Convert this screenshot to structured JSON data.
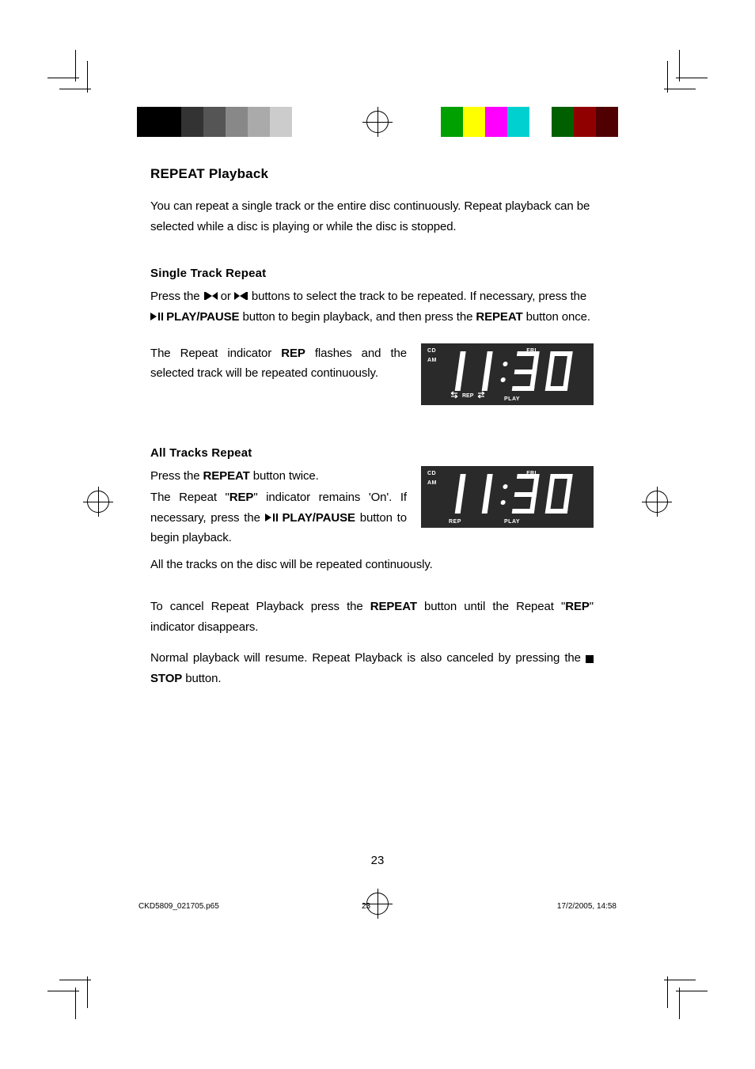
{
  "section_title": "REPEAT Playback",
  "intro": "You can repeat a single track or the entire disc continuously. Repeat playback can be selected while a disc is playing or while the disc is stopped.",
  "single": {
    "heading": "Single Track Repeat",
    "p1_a": "Press the ",
    "p1_b": " or ",
    "p1_c": " buttons to select the track to be repeated. If necessary, press the ",
    "p1_play": " PLAY/PAUSE",
    "p1_d": " button to begin playback, and then press the ",
    "p1_repeat": "REPEAT",
    "p1_e": " button once.",
    "p2_a": "The Repeat indicator ",
    "p2_rep": "REP",
    "p2_b": " flashes and the selected track will be repeated continuously."
  },
  "all": {
    "heading": "All Tracks Repeat",
    "p1_a": "Press the ",
    "p1_repeat": "REPEAT",
    "p1_b": " button twice.",
    "p2_a": "The Repeat \"",
    "p2_rep": "REP",
    "p2_b": "\" indicator remains 'On'. If necessary, press the ",
    "p2_play": " PLAY/PAUSE",
    "p2_c": " button to begin playback.",
    "p3": "All the tracks on the disc will be repeated continuously.",
    "p4_a": "To cancel Repeat Playback press the ",
    "p4_repeat": "REPEAT",
    "p4_b": " button until the Repeat \"",
    "p4_rep": "REP",
    "p4_c": "\" indicator disappears.",
    "p5_a": "Normal playback will resume. Repeat Playback is also canceled by pressing the ",
    "p5_stop": " STOP",
    "p5_b": " button."
  },
  "lcd": {
    "cd": "CD",
    "am": "AM",
    "fri": "FRI",
    "rep": "REP",
    "play": "PLAY",
    "time": "11:30",
    "bg": "#2a2a2a",
    "fg": "#ffffff"
  },
  "colorbar_left": [
    "#000000",
    "#000000",
    "#333333",
    "#555555",
    "#888888",
    "#aaaaaa",
    "#cccccc",
    "#ffffff",
    "#ffffff"
  ],
  "colorbar_right": [
    "#ffffff",
    "#00a000",
    "#ffff00",
    "#ff00ff",
    "#00d0d0",
    "#ffffff",
    "#006000",
    "#900000",
    "#500000"
  ],
  "page_number": "23",
  "footer": {
    "file": "CKD5809_021705.p65",
    "page": "23",
    "date": "17/2/2005, 14:58"
  }
}
